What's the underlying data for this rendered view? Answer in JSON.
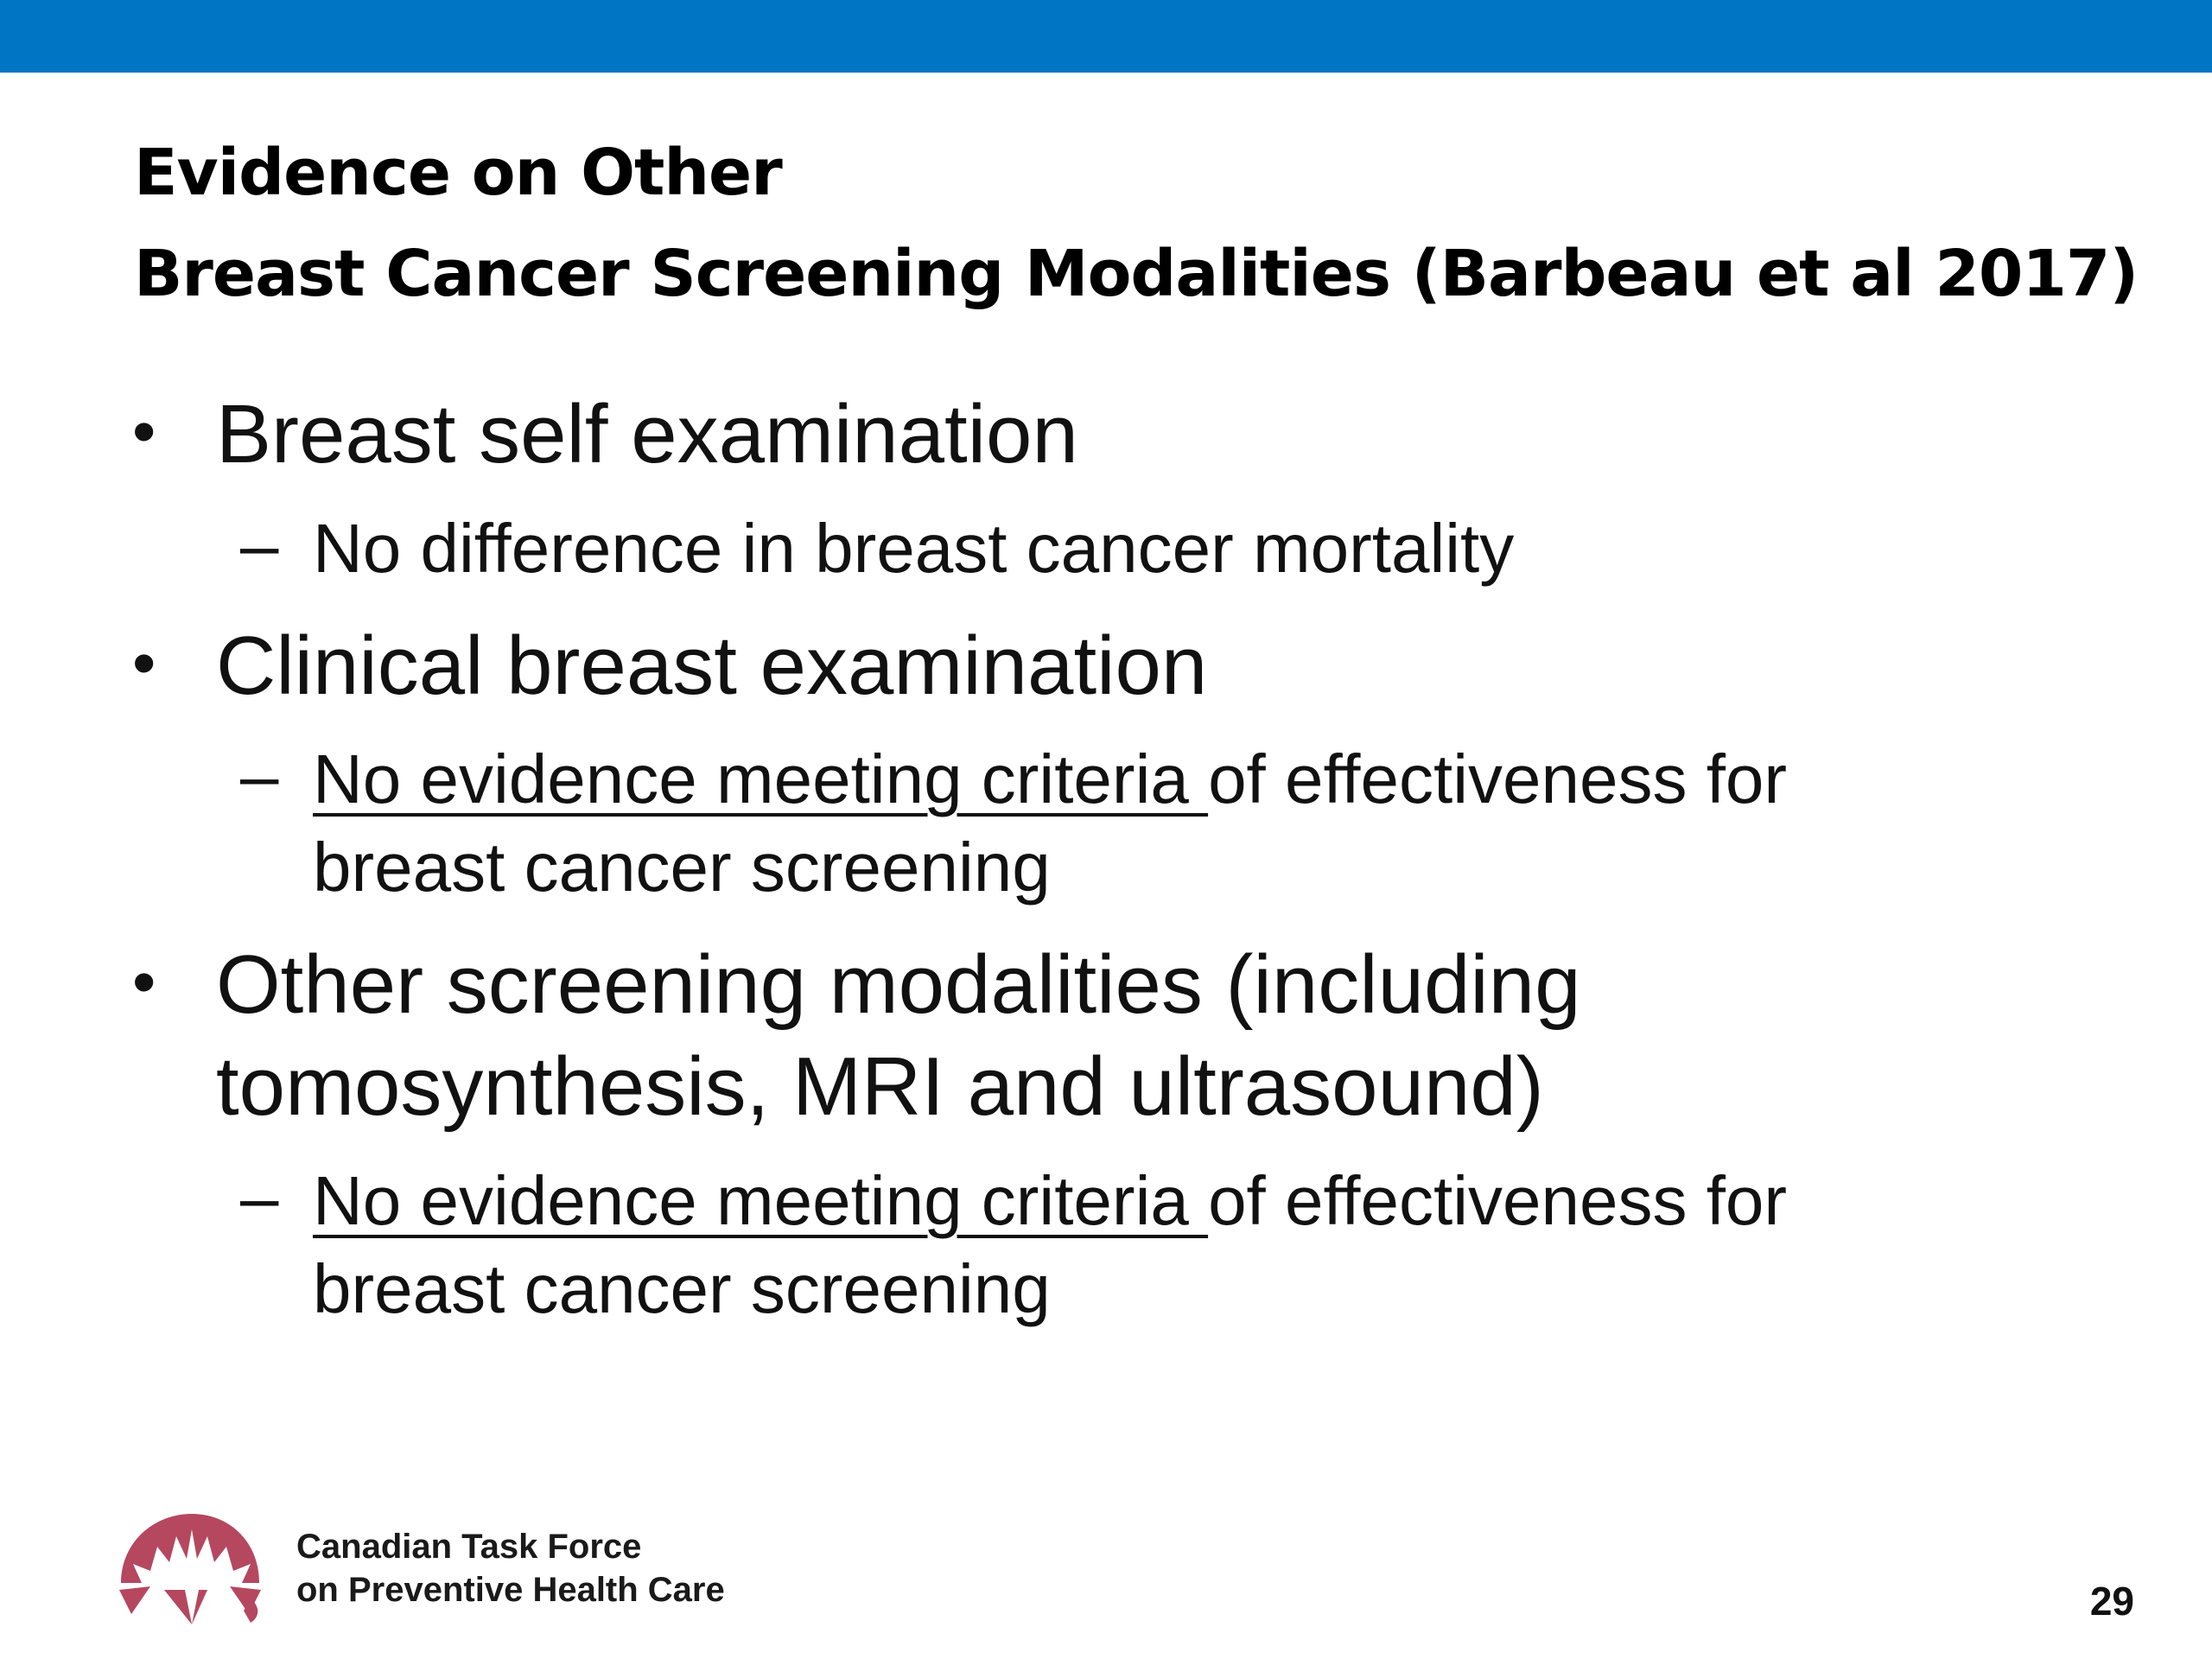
{
  "slide": {
    "title_line1": "Evidence on Other",
    "title_line2": "Breast Cancer Screening Modalities (Barbeau et al 2017)",
    "bullets": [
      {
        "text": "Breast self examination",
        "sub": "No difference in breast cancer mortality"
      },
      {
        "text": "Clinical breast examination",
        "sub_underlined": "No evidence meeting criteria ",
        "sub_rest": "of effectiveness for",
        "sub_line2": "breast cancer screening"
      },
      {
        "text_line1": "Other screening modalities (including",
        "text_line2": "tomosynthesis, MRI and ultrasound)",
        "sub_underlined": "No evidence meeting criteria ",
        "sub_rest": "of effectiveness for",
        "sub_line2": "breast cancer screening"
      }
    ],
    "bullet_symbol": "•",
    "dash_symbol": "–"
  },
  "footer": {
    "org_line1": "Canadian Task Force",
    "org_line2": "on Preventive Health Care",
    "logo_icon": "maple-leaf-arc-logo-icon",
    "page_number": "29"
  },
  "colors": {
    "top_bar": "#0075c4",
    "logo": "#b5475f"
  }
}
